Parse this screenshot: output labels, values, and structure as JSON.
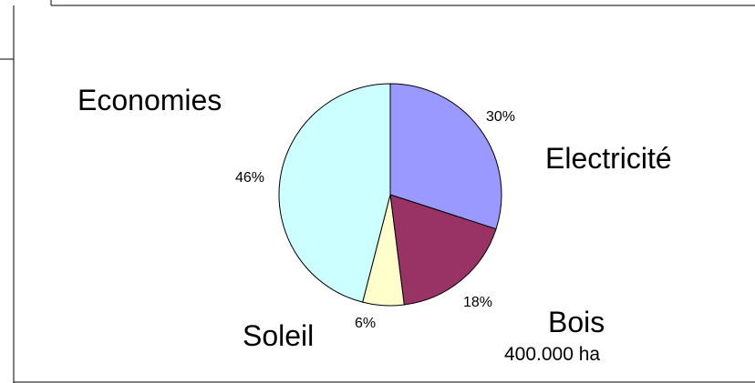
{
  "chart_data": {
    "type": "pie",
    "categories": [
      "Electricité",
      "Bois",
      "Soleil",
      "Economies"
    ],
    "values": [
      30,
      18,
      6,
      46
    ],
    "percent_labels": [
      "30%",
      "18%",
      "6%",
      "46%"
    ],
    "annotations": {
      "bois_area": "400.000 ha"
    },
    "colors": [
      "#9999ff",
      "#993366",
      "#ffffcc",
      "#ccffff"
    ],
    "start_angle": "top",
    "direction": "clockwise",
    "legend": "none",
    "title": ""
  }
}
